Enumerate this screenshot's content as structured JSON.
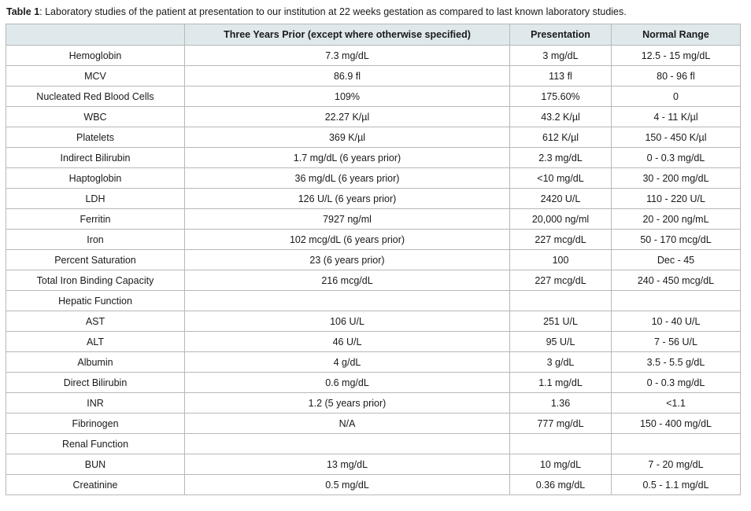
{
  "caption": {
    "label": "Table 1",
    "text": ": Laboratory studies of the patient at presentation to our institution at 22 weeks gestation as compared to last known laboratory studies."
  },
  "table": {
    "headers": [
      "",
      "Three Years Prior (except where otherwise specified)",
      "Presentation",
      "Normal Range"
    ],
    "rows": [
      [
        "Hemoglobin",
        "7.3 mg/dL",
        "3 mg/dL",
        "12.5 - 15 mg/dL"
      ],
      [
        "MCV",
        "86.9 fl",
        "113 fl",
        "80 - 96 fl"
      ],
      [
        "Nucleated Red Blood Cells",
        "109%",
        "175.60%",
        "0"
      ],
      [
        "WBC",
        "22.27 K/µl",
        "43.2 K/µl",
        "4 - 11 K/µl"
      ],
      [
        "Platelets",
        "369 K/µl",
        "612 K/µl",
        "150 - 450 K/µl"
      ],
      [
        "Indirect Bilirubin",
        "1.7 mg/dL (6 years prior)",
        "2.3 mg/dL",
        "0 - 0.3 mg/dL"
      ],
      [
        "Haptoglobin",
        "36 mg/dL (6 years prior)",
        "<10 mg/dL",
        "30 - 200 mg/dL"
      ],
      [
        "LDH",
        "126 U/L (6 years prior)",
        "2420 U/L",
        "110 - 220 U/L"
      ],
      [
        "Ferritin",
        "7927 ng/ml",
        "20,000 ng/ml",
        "20 - 200 ng/mL"
      ],
      [
        "Iron",
        "102 mcg/dL (6 years prior)",
        "227 mcg/dL",
        "50 - 170 mcg/dL"
      ],
      [
        "Percent Saturation",
        "23 (6 years prior)",
        "100",
        "Dec - 45"
      ],
      [
        "Total Iron Binding Capacity",
        "216 mcg/dL",
        "227 mcg/dL",
        "240 - 450 mcg/dL"
      ],
      [
        "Hepatic Function",
        "",
        "",
        ""
      ],
      [
        "AST",
        "106 U/L",
        "251 U/L",
        "10 - 40 U/L"
      ],
      [
        "ALT",
        "46 U/L",
        "95 U/L",
        "7 - 56 U/L"
      ],
      [
        "Albumin",
        "4 g/dL",
        "3 g/dL",
        "3.5 - 5.5 g/dL"
      ],
      [
        "Direct Bilirubin",
        "0.6 mg/dL",
        "1.1 mg/dL",
        "0 - 0.3 mg/dL"
      ],
      [
        "INR",
        "1.2 (5 years prior)",
        "1.36",
        "<1.1"
      ],
      [
        "Fibrinogen",
        "N/A",
        "777 mg/dL",
        "150 - 400 mg/dL"
      ],
      [
        "Renal Function",
        "",
        "",
        ""
      ],
      [
        "BUN",
        "13 mg/dL",
        "10 mg/dL",
        "7 - 20 mg/dL"
      ],
      [
        "Creatinine",
        "0.5 mg/dL",
        "0.36 mg/dL",
        "0.5 - 1.1 mg/dL"
      ]
    ]
  }
}
